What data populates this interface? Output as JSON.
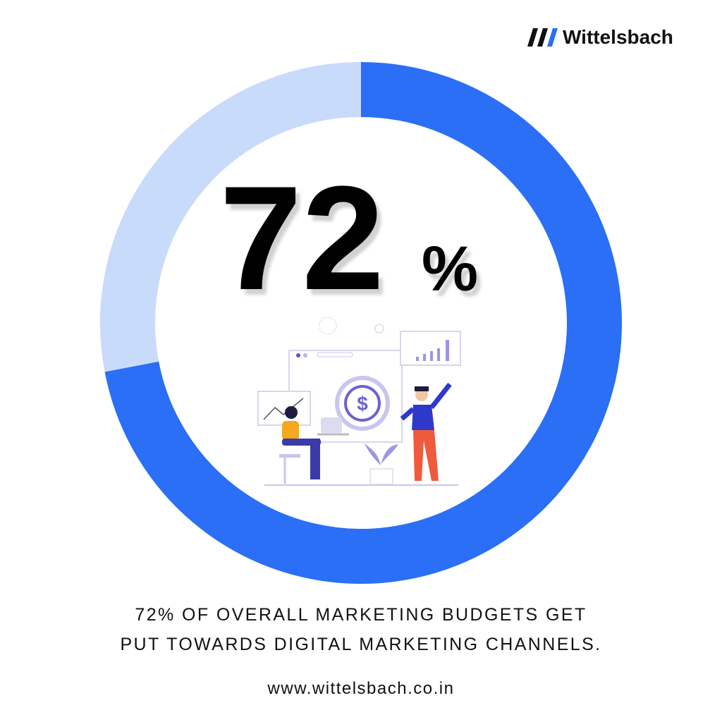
{
  "brand": "Wittelsbach",
  "chart_data": {
    "type": "donut",
    "values": [
      72,
      28
    ],
    "colors": [
      "#2a6ff5",
      "#c9dbfa"
    ],
    "center_label": "72",
    "center_unit": "%"
  },
  "caption": [
    "72% OF OVERALL MARKETING BUDGETS GET",
    "PUT TOWARDS DIGITAL MARKETING CHANNELS."
  ],
  "url": "www.wittelsbach.co.in"
}
